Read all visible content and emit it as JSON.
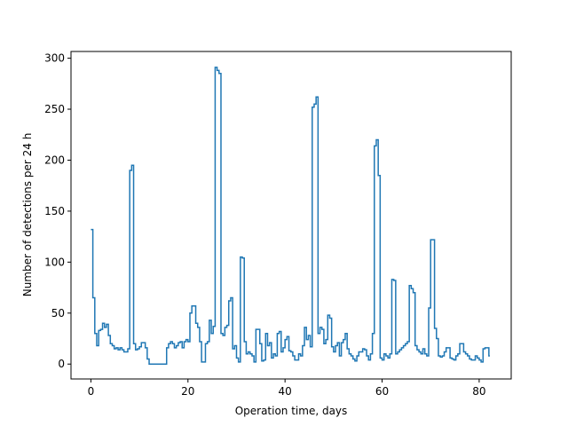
{
  "chart_data": {
    "type": "line",
    "xlabel": "Operation time, days",
    "ylabel": "Number of detections per 24 h",
    "xlim": [
      -4.1,
      86.6
    ],
    "ylim": [
      -14.6,
      306.6
    ],
    "xticks": [
      0,
      20,
      40,
      60,
      80
    ],
    "yticks": [
      0,
      50,
      100,
      150,
      200,
      250,
      300
    ],
    "grid": false,
    "legend": "none",
    "series": [
      {
        "color": "#1f77b4",
        "step": 0.4,
        "x0": 0,
        "values": [
          132,
          65,
          30,
          18,
          33,
          34,
          40,
          36,
          39,
          28,
          20,
          18,
          15,
          16,
          14,
          16,
          14,
          12,
          12,
          15,
          190,
          195,
          20,
          14,
          15,
          17,
          21,
          21,
          16,
          5,
          0,
          0,
          0,
          0,
          0,
          0,
          0,
          0,
          0,
          16,
          20,
          22,
          20,
          16,
          18,
          21,
          22,
          16,
          22,
          24,
          22,
          50,
          57,
          57,
          40,
          36,
          22,
          2,
          2,
          20,
          22,
          43,
          30,
          37,
          291,
          288,
          285,
          30,
          28,
          36,
          38,
          62,
          65,
          15,
          18,
          6,
          2,
          105,
          104,
          22,
          10,
          12,
          10,
          8,
          2,
          34,
          34,
          20,
          3,
          4,
          30,
          18,
          21,
          6,
          10,
          8,
          30,
          32,
          12,
          16,
          24,
          27,
          13,
          12,
          8,
          4,
          4,
          10,
          8,
          18,
          36,
          24,
          28,
          17,
          252,
          255,
          262,
          30,
          36,
          34,
          20,
          24,
          48,
          45,
          17,
          12,
          18,
          21,
          8,
          21,
          24,
          30,
          15,
          10,
          8,
          5,
          3,
          8,
          12,
          12,
          15,
          14,
          8,
          4,
          10,
          30,
          214,
          220,
          185,
          6,
          4,
          10,
          8,
          6,
          10,
          83,
          82,
          10,
          12,
          14,
          16,
          18,
          20,
          22,
          77,
          74,
          70,
          18,
          14,
          12,
          10,
          15,
          10,
          8,
          55,
          122,
          122,
          35,
          25,
          8,
          7,
          8,
          12,
          16,
          16,
          6,
          5,
          4,
          8,
          10,
          20,
          20,
          12,
          10,
          8,
          5,
          4,
          4,
          8,
          6,
          4,
          2,
          15,
          16,
          16,
          8
        ]
      }
    ]
  }
}
